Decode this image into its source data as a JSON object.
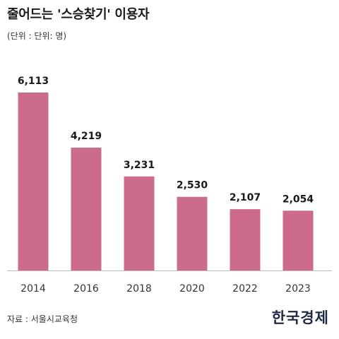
{
  "title": "줄어드는 '스승찾기' 이용자",
  "unit_note": "(단위 : 단위: 명)",
  "source": "자료 : 서울시교육청",
  "logo": "한국경제",
  "colors": {
    "bar": "#cc6b8c",
    "baseline": "#bbbbbb"
  },
  "chart_data": {
    "type": "bar",
    "categories": [
      "2014",
      "2016",
      "2018",
      "2020",
      "2022",
      "2023"
    ],
    "values": [
      6113,
      4219,
      3231,
      2530,
      2107,
      2054
    ],
    "value_labels": [
      "6,113",
      "4,219",
      "3,231",
      "2,530",
      "2,107",
      "2,054"
    ],
    "title": "줄어드는 '스승찾기' 이용자",
    "xlabel": "",
    "ylabel": "",
    "ylim": [
      0,
      6113
    ],
    "grid": false,
    "legend": "none"
  }
}
